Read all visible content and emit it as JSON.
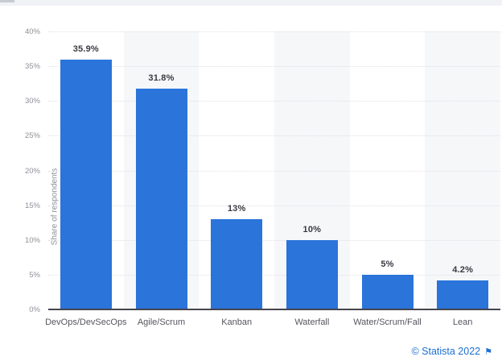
{
  "chart_data": {
    "type": "bar",
    "categories": [
      "DevOps/DevSecOps",
      "Agile/Scrum",
      "Kanban",
      "Waterfall",
      "Water/Scrum/Fall",
      "Lean"
    ],
    "values": [
      35.9,
      31.8,
      13,
      10,
      5,
      4.2
    ],
    "value_labels": [
      "35.9%",
      "31.8%",
      "13%",
      "10%",
      "5%",
      "4.2%"
    ],
    "title": "",
    "xlabel": "",
    "ylabel": "Share of respondents",
    "ylim": [
      0,
      40
    ],
    "ytick_step": 5,
    "ytick_labels": [
      "0%",
      "5%",
      "10%",
      "15%",
      "20%",
      "25%",
      "30%",
      "35%",
      "40%"
    ],
    "grid": "horizontal-dotted",
    "legend": "none",
    "bar_color": "#2a74da",
    "alt_column_stripe_color": "#f6f7f9",
    "striped_column_indexes": [
      1,
      3,
      5
    ]
  },
  "footer": {
    "credit_text": "© Statista 2022",
    "flag_icon": "⚑",
    "credit_color": "#1e6fd0"
  }
}
